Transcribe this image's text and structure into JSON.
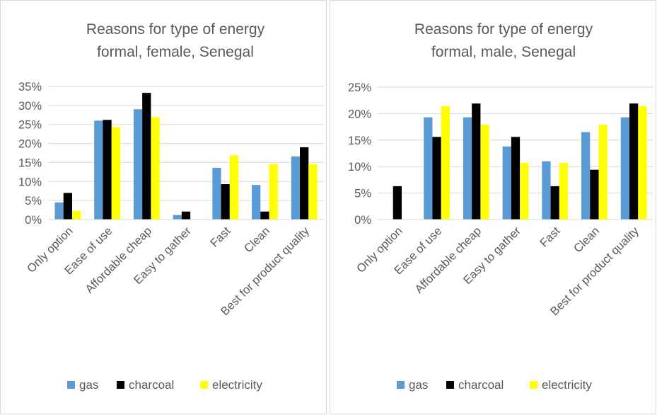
{
  "chart_data": [
    {
      "type": "bar",
      "title": "Reasons for type of energy formal, female, Senegal",
      "title_lines": [
        "Reasons for type of energy",
        "formal, female, Senegal"
      ],
      "categories": [
        "Only option",
        "Ease of use",
        "Affordable cheap",
        "Easy to gather",
        "Fast",
        "Clean",
        "Best for product quality"
      ],
      "series": [
        {
          "name": "gas",
          "color": "#5b9bd5",
          "values": [
            4.5,
            26.0,
            29.0,
            1.2,
            13.6,
            9.1,
            16.6
          ]
        },
        {
          "name": "charcoal",
          "color": "#000000",
          "values": [
            7.0,
            26.2,
            33.3,
            2.1,
            9.3,
            2.1,
            19.0
          ]
        },
        {
          "name": "electricity",
          "color": "#ffff00",
          "values": [
            2.3,
            24.3,
            26.9,
            0,
            16.9,
            14.6,
            14.6
          ]
        }
      ],
      "ylim": [
        0,
        35
      ],
      "yticks": [
        "0%",
        "5%",
        "10%",
        "15%",
        "20%",
        "25%",
        "30%",
        "35%"
      ],
      "ytick_values": [
        0,
        5,
        10,
        15,
        20,
        25,
        30,
        35
      ],
      "grid": true,
      "legend": "bottom"
    },
    {
      "type": "bar",
      "title": "Reasons for type of energy formal, male, Senegal",
      "title_lines": [
        "Reasons for type of energy",
        "formal, male, Senegal"
      ],
      "categories": [
        "Only option",
        "Ease of use",
        "Affordable cheap",
        "Easy to gather",
        "Fast",
        "Clean",
        "Best for product quality"
      ],
      "series": [
        {
          "name": "gas",
          "color": "#5b9bd5",
          "values": [
            0,
            19.3,
            19.3,
            13.8,
            11.0,
            16.5,
            19.3
          ]
        },
        {
          "name": "charcoal",
          "color": "#000000",
          "values": [
            6.3,
            15.6,
            21.9,
            15.6,
            6.3,
            9.4,
            21.9
          ]
        },
        {
          "name": "electricity",
          "color": "#ffff00",
          "values": [
            0,
            21.4,
            17.9,
            10.7,
            10.7,
            17.9,
            21.4
          ]
        }
      ],
      "ylim": [
        0,
        25
      ],
      "yticks": [
        "0%",
        "5%",
        "10%",
        "15%",
        "20%",
        "25%"
      ],
      "ytick_values": [
        0,
        5,
        10,
        15,
        20,
        25
      ],
      "grid": true,
      "legend": "bottom"
    }
  ]
}
